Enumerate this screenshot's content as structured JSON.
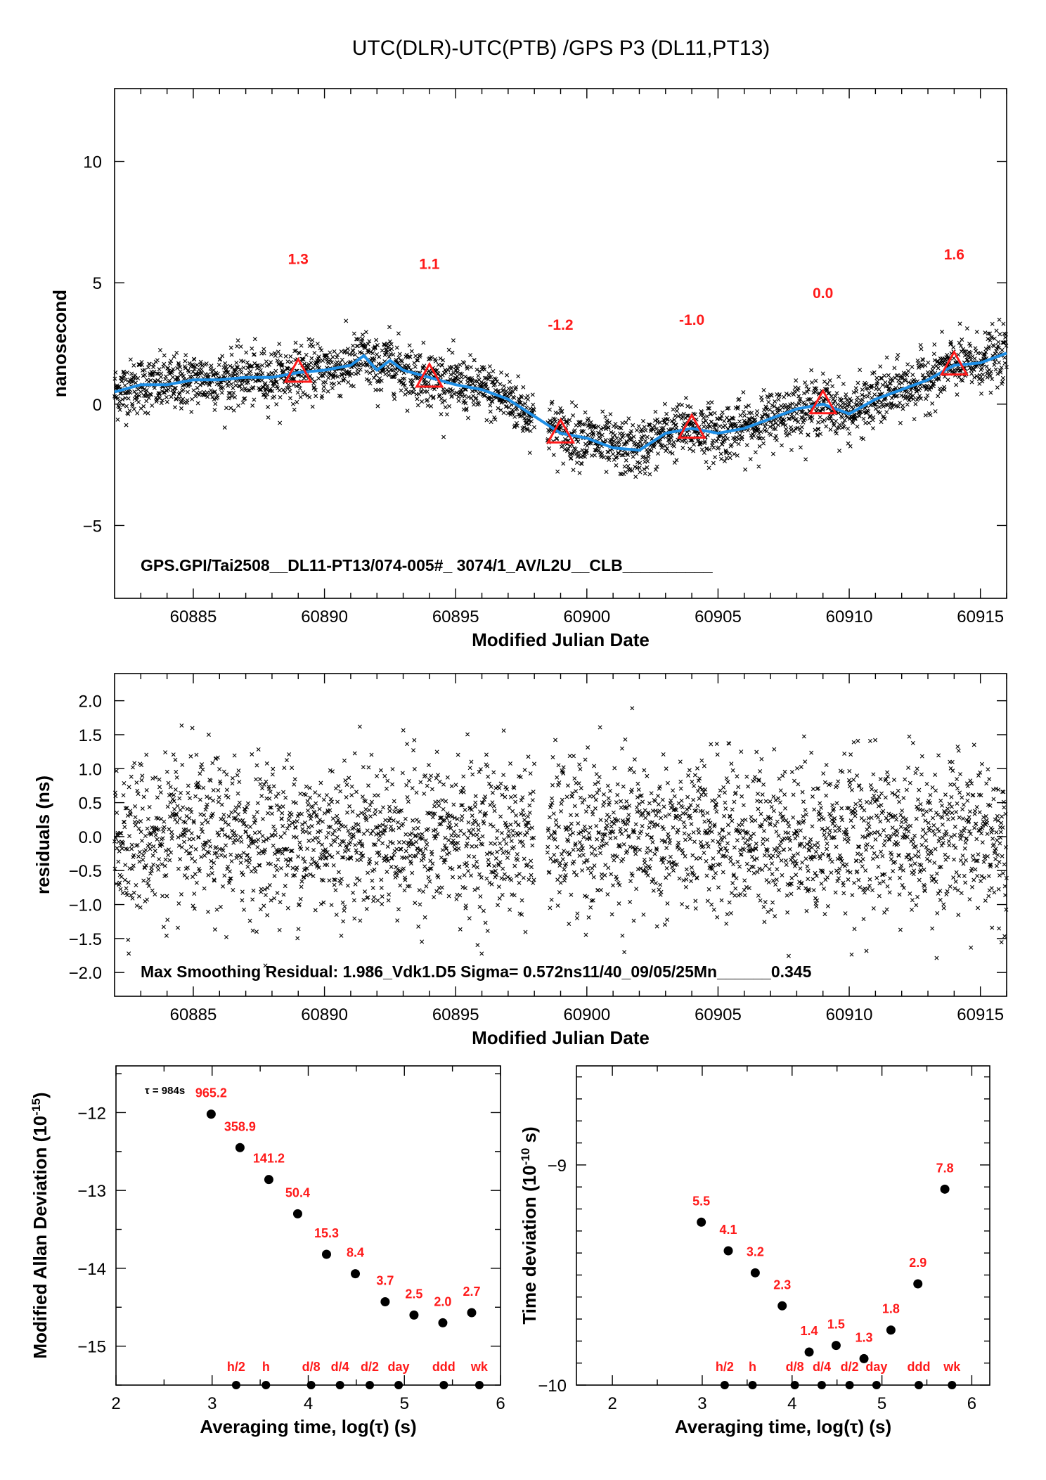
{
  "chart_data": [
    {
      "type": "scatter",
      "title": "UTC(DLR)-UTC(PTB)  /GPS  P3  (DL11,PT13)",
      "xlabel": "Modified Julian Date",
      "ylabel": "nanosecond",
      "xlim": [
        60882,
        60916
      ],
      "ylim": [
        -8,
        13
      ],
      "xticks": [
        "60885",
        "60890",
        "60895",
        "60900",
        "60905",
        "60910",
        "60915"
      ],
      "yticks": [
        "10",
        "5",
        "0",
        "−5"
      ],
      "smooth_curve_x": [
        60882,
        60883,
        60884,
        60885,
        60886,
        60887,
        60888,
        60889,
        60890,
        60891,
        60891.5,
        60892,
        60892.5,
        60893,
        60894,
        60895,
        60896,
        60897,
        60898,
        60899,
        60900,
        60901,
        60902,
        60903,
        60904,
        60905,
        60906,
        60907,
        60908,
        60909,
        60910,
        60911,
        60912,
        60913,
        60914,
        60915,
        60916
      ],
      "smooth_curve_y": [
        0.5,
        0.8,
        0.8,
        1.0,
        1.0,
        1.1,
        1.1,
        1.3,
        1.4,
        1.6,
        2.0,
        1.4,
        1.8,
        1.4,
        1.1,
        0.8,
        0.6,
        0.2,
        -0.5,
        -1.2,
        -1.4,
        -1.8,
        -1.9,
        -1.2,
        -1.0,
        -1.2,
        -1.0,
        -0.6,
        -0.2,
        0.0,
        -0.4,
        0.2,
        0.6,
        1.0,
        1.6,
        1.7,
        2.1
      ],
      "triangles": [
        {
          "x": 60889,
          "y": 1.3,
          "label": "1.3",
          "label_y": 6.0
        },
        {
          "x": 60894,
          "y": 1.1,
          "label": "1.1",
          "label_y": 5.8
        },
        {
          "x": 60899,
          "y": -1.2,
          "label": "-1.2",
          "label_y": 3.3
        },
        {
          "x": 60904,
          "y": -1.0,
          "label": "-1.0",
          "label_y": 3.5
        },
        {
          "x": 60909,
          "y": 0.0,
          "label": "0.0",
          "label_y": 4.6
        },
        {
          "x": 60914,
          "y": 1.6,
          "label": "1.6",
          "label_y": 6.2
        }
      ],
      "gap_x": [
        60898,
        60898.5
      ],
      "noise_sigma": 0.57,
      "annotation": "GPS.GPI/Tai2508__DL11-PT13/074-005#_  3074/1_AV/L2U__CLB__________"
    },
    {
      "type": "scatter",
      "xlabel": "Modified Julian Date",
      "ylabel": "residuals (ns)",
      "xlim": [
        60882,
        60916
      ],
      "ylim": [
        -2.35,
        2.4
      ],
      "xticks": [
        "60885",
        "60890",
        "60895",
        "60900",
        "60905",
        "60910",
        "60915"
      ],
      "yticks": [
        "2.0",
        "1.5",
        "1.0",
        "0.5",
        "0.0",
        "−0.5",
        "−1.0",
        "−1.5",
        "−2.0"
      ],
      "sigma": 0.572,
      "max_residual": 1.986,
      "annotation": "Max Smoothing Residual: 1.986_Vdk1.D5  Sigma= 0.572ns11/40_09/05/25Mn______0.345"
    },
    {
      "type": "scatter",
      "xlabel": "Averaging time, log(τ) (s)",
      "ylabel": "Modified Allan Deviation (10",
      "ylabel_exp": "-15",
      "ylabel_end": ")",
      "xlim": [
        2,
        6
      ],
      "ylim": [
        -15.5,
        -11.4
      ],
      "xticks": [
        "2",
        "3",
        "4",
        "5",
        "6"
      ],
      "yticks": [
        "−12",
        "−13",
        "−14",
        "−15"
      ],
      "tau_note": "τ = 984s",
      "points": [
        {
          "x": 2.99,
          "y": -12.02,
          "label": "965.2"
        },
        {
          "x": 3.29,
          "y": -12.45,
          "label": "358.9"
        },
        {
          "x": 3.59,
          "y": -12.86,
          "label": "141.2"
        },
        {
          "x": 3.89,
          "y": -13.3,
          "label": "50.4"
        },
        {
          "x": 4.19,
          "y": -13.82,
          "label": "15.3"
        },
        {
          "x": 4.49,
          "y": -14.07,
          "label": "8.4"
        },
        {
          "x": 4.8,
          "y": -14.43,
          "label": "3.7"
        },
        {
          "x": 5.1,
          "y": -14.6,
          "label": "2.5"
        },
        {
          "x": 5.4,
          "y": -14.7,
          "label": "2.0"
        },
        {
          "x": 5.7,
          "y": -14.57,
          "label": "2.7"
        }
      ],
      "markers": [
        {
          "x": 3.25,
          "label": "h/2"
        },
        {
          "x": 3.56,
          "label": "h"
        },
        {
          "x": 4.03,
          "label": "d/8"
        },
        {
          "x": 4.33,
          "label": "d/4"
        },
        {
          "x": 4.64,
          "label": "d/2"
        },
        {
          "x": 4.94,
          "label": "day"
        },
        {
          "x": 5.41,
          "label": "ddd"
        },
        {
          "x": 5.78,
          "label": "wk"
        }
      ]
    },
    {
      "type": "scatter",
      "xlabel": "Averaging time, log(τ) (s)",
      "ylabel": "Time deviation (10",
      "ylabel_exp": "-10",
      "ylabel_end": " s)",
      "xlim": [
        1.6,
        6.2
      ],
      "ylim": [
        -10,
        -8.55
      ],
      "xticks": [
        "2",
        "3",
        "4",
        "5",
        "6"
      ],
      "yticks": [
        "−9",
        "−10"
      ],
      "points": [
        {
          "x": 2.99,
          "y": -9.26,
          "label": "5.5"
        },
        {
          "x": 3.29,
          "y": -9.39,
          "label": "4.1"
        },
        {
          "x": 3.59,
          "y": -9.49,
          "label": "3.2"
        },
        {
          "x": 3.89,
          "y": -9.64,
          "label": "2.3"
        },
        {
          "x": 4.19,
          "y": -9.85,
          "label": "1.4"
        },
        {
          "x": 4.49,
          "y": -9.82,
          "label": "1.5"
        },
        {
          "x": 4.8,
          "y": -9.88,
          "label": "1.3"
        },
        {
          "x": 5.1,
          "y": -9.75,
          "label": "1.8"
        },
        {
          "x": 5.4,
          "y": -9.54,
          "label": "2.9"
        },
        {
          "x": 5.7,
          "y": -9.11,
          "label": "7.8"
        }
      ],
      "markers": [
        {
          "x": 3.25,
          "label": "h/2"
        },
        {
          "x": 3.56,
          "label": "h"
        },
        {
          "x": 4.03,
          "label": "d/8"
        },
        {
          "x": 4.33,
          "label": "d/4"
        },
        {
          "x": 4.64,
          "label": "d/2"
        },
        {
          "x": 4.94,
          "label": "day"
        },
        {
          "x": 5.41,
          "label": "ddd"
        },
        {
          "x": 5.78,
          "label": "wk"
        }
      ]
    }
  ]
}
